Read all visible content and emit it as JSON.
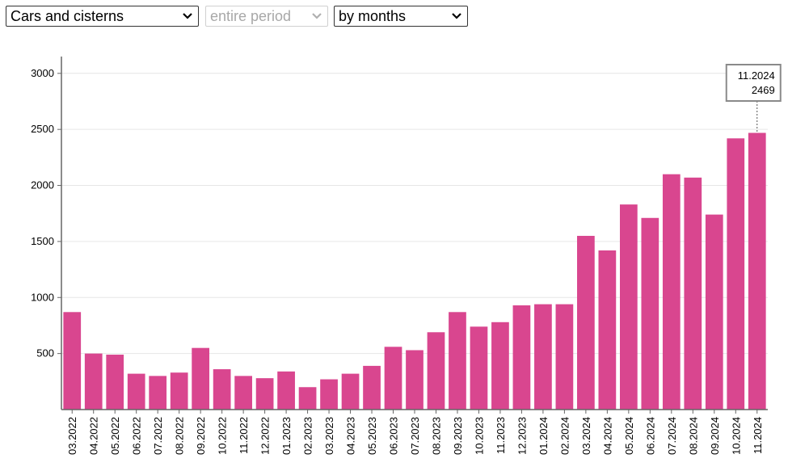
{
  "controls": {
    "category": "Cars and cisterns",
    "period": "entire period",
    "granularity": "by months"
  },
  "colors": {
    "bar": "#d9468f",
    "grid": "#e6e6e6",
    "axis": "#666666"
  },
  "chart_data": {
    "type": "bar",
    "categories": [
      "03.2022",
      "04.2022",
      "05.2022",
      "06.2022",
      "07.2022",
      "08.2022",
      "09.2022",
      "10.2022",
      "11.2022",
      "12.2022",
      "01.2023",
      "02.2023",
      "03.2023",
      "04.2023",
      "05.2023",
      "06.2023",
      "07.2023",
      "08.2023",
      "09.2023",
      "10.2023",
      "11.2023",
      "12.2023",
      "01.2024",
      "02.2024",
      "03.2024",
      "04.2024",
      "05.2024",
      "06.2024",
      "07.2024",
      "08.2024",
      "09.2024",
      "10.2024",
      "11.2024"
    ],
    "values": [
      870,
      500,
      490,
      320,
      300,
      330,
      550,
      360,
      300,
      280,
      340,
      200,
      270,
      320,
      390,
      560,
      530,
      690,
      870,
      740,
      780,
      930,
      940,
      940,
      1550,
      1420,
      1830,
      1710,
      2100,
      2070,
      1740,
      2420,
      2469
    ],
    "yticks": [
      500,
      1000,
      1500,
      2000,
      2500,
      3000
    ],
    "ylim": [
      0,
      3150
    ],
    "grid": true,
    "tooltip": {
      "label": "11.2024",
      "value": "2469"
    }
  }
}
